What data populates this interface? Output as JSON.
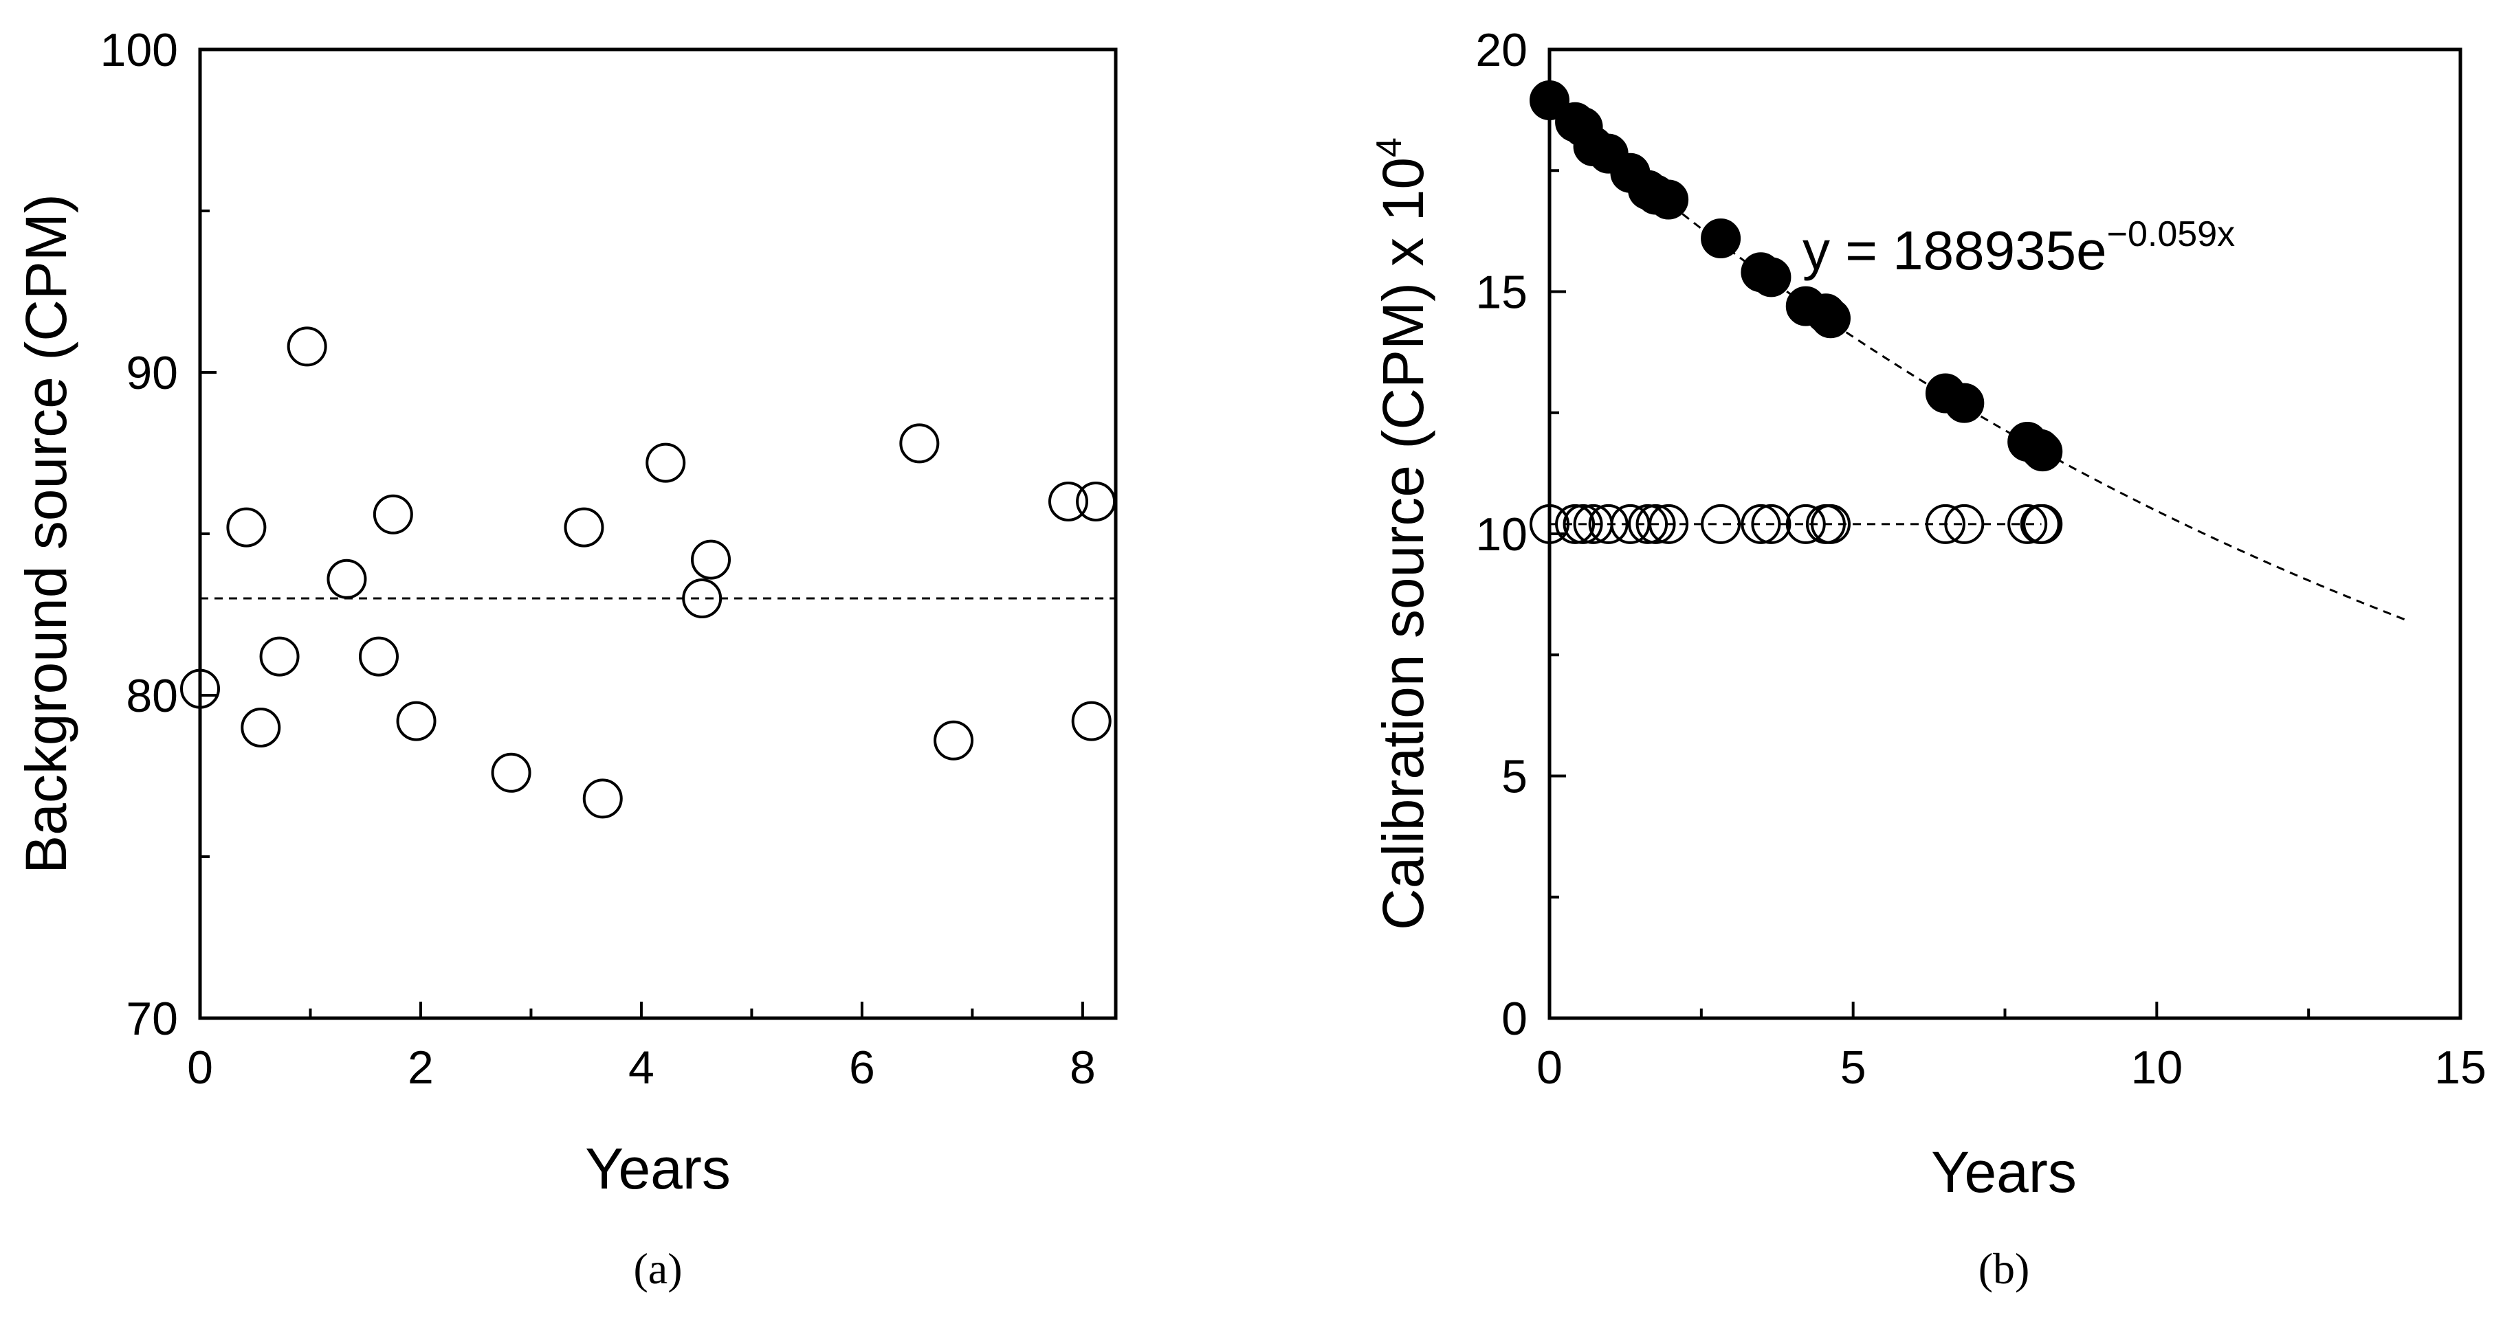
{
  "chart_data": [
    {
      "panel": "(a)",
      "type": "scatter",
      "xlabel": "Years",
      "ylabel": "Background source (CPM)",
      "xlim": [
        0,
        8.3
      ],
      "ylim": [
        70,
        100
      ],
      "xticks": [
        0,
        2,
        4,
        6,
        8
      ],
      "yticks": [
        70,
        80,
        90,
        100
      ],
      "ytick_labels": [
        "70",
        "80",
        "90",
        "100"
      ],
      "grid": false,
      "series": [
        {
          "marker": "open-circle",
          "x": [
            0.0,
            0.42,
            0.55,
            0.72,
            0.97,
            1.33,
            1.62,
            1.75,
            1.96,
            2.82,
            3.48,
            3.65,
            4.22,
            4.55,
            4.63,
            6.52,
            6.83,
            7.87,
            8.08,
            8.12
          ],
          "y": [
            80.2,
            85.2,
            79.0,
            81.2,
            90.8,
            83.6,
            81.2,
            85.6,
            79.2,
            77.6,
            85.2,
            76.8,
            87.2,
            83.0,
            84.2,
            87.8,
            78.6,
            86.0,
            79.2,
            86.0
          ]
        }
      ],
      "reference_line": {
        "style": "dashed",
        "y": 83.0,
        "x_range": [
          0,
          8.3
        ]
      }
    },
    {
      "panel": "(b)",
      "type": "scatter",
      "xlabel": "Years",
      "ylabel": "Calibration source (CPM) x 10",
      "ylabel_superscript": "4",
      "xlim": [
        0,
        15
      ],
      "ylim": [
        0,
        20
      ],
      "xticks": [
        0,
        5,
        10,
        15
      ],
      "yticks": [
        0,
        5,
        10,
        15,
        20
      ],
      "grid": false,
      "series": [
        {
          "marker": "filled-circle",
          "x": [
            0.0,
            0.42,
            0.55,
            0.72,
            0.97,
            1.33,
            1.62,
            1.75,
            1.96,
            2.82,
            3.48,
            3.65,
            4.22,
            4.55,
            4.63,
            6.52,
            6.83,
            7.87,
            8.08,
            8.12
          ],
          "y": [
            18.95,
            18.5,
            18.4,
            18.0,
            17.85,
            17.45,
            17.1,
            17.0,
            16.9,
            16.1,
            15.4,
            15.3,
            14.7,
            14.55,
            14.45,
            12.9,
            12.7,
            11.9,
            11.75,
            11.7
          ]
        },
        {
          "marker": "open-circle",
          "x": [
            0.0,
            0.42,
            0.55,
            0.72,
            0.97,
            1.33,
            1.62,
            1.75,
            1.96,
            2.82,
            3.48,
            3.65,
            4.22,
            4.55,
            4.63,
            6.52,
            6.83,
            7.87,
            8.08,
            8.12
          ],
          "y": [
            10.2,
            10.2,
            10.2,
            10.2,
            10.2,
            10.2,
            10.2,
            10.2,
            10.2,
            10.2,
            10.2,
            10.2,
            10.2,
            10.2,
            10.2,
            10.2,
            10.2,
            10.2,
            10.2,
            10.2
          ]
        }
      ],
      "fit_curve": {
        "style": "dashed",
        "a": 18.8935,
        "k": -0.059,
        "x_range": [
          0,
          14.1
        ]
      },
      "reference_line": {
        "style": "dashed",
        "y": 10.2,
        "x_range": [
          0,
          8.1
        ]
      },
      "annotation": {
        "text": "y = 188935e",
        "superscript": "−0.059x"
      }
    }
  ]
}
